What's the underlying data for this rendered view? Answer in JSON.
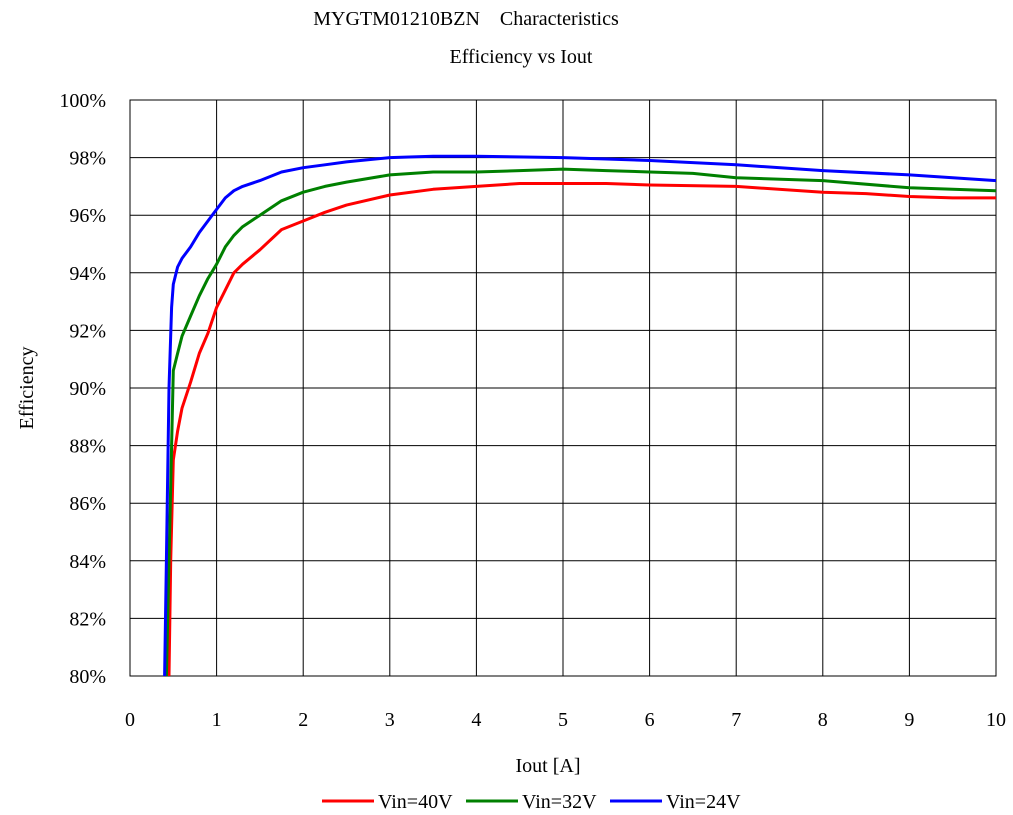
{
  "chart_data": {
    "type": "line",
    "title": "MYGTM01210BZN    Characteristics",
    "subtitle": "Efficiency vs Iout",
    "xlabel": "Iout [A]",
    "ylabel": "Efficiency",
    "xlim": [
      0,
      10
    ],
    "ylim": [
      80,
      100
    ],
    "x_ticks": [
      "0",
      "1",
      "2",
      "3",
      "4",
      "5",
      "6",
      "7",
      "8",
      "9",
      "10"
    ],
    "y_ticks": [
      "80%",
      "82%",
      "84%",
      "86%",
      "88%",
      "90%",
      "92%",
      "94%",
      "96%",
      "98%",
      "100%"
    ],
    "grid": true,
    "legend_position": "bottom",
    "series": [
      {
        "name": "Vin=40V",
        "color": "#ff0000",
        "points": [
          [
            0.45,
            80.0
          ],
          [
            0.47,
            84.0
          ],
          [
            0.5,
            87.5
          ],
          [
            0.55,
            88.5
          ],
          [
            0.6,
            89.3
          ],
          [
            0.7,
            90.2
          ],
          [
            0.8,
            91.2
          ],
          [
            0.9,
            91.9
          ],
          [
            1.0,
            92.8
          ],
          [
            1.1,
            93.4
          ],
          [
            1.2,
            94.0
          ],
          [
            1.3,
            94.3
          ],
          [
            1.5,
            94.8
          ],
          [
            1.75,
            95.5
          ],
          [
            2.0,
            95.8
          ],
          [
            2.25,
            96.1
          ],
          [
            2.5,
            96.35
          ],
          [
            3.0,
            96.7
          ],
          [
            3.5,
            96.9
          ],
          [
            4.0,
            97.0
          ],
          [
            4.5,
            97.1
          ],
          [
            5.0,
            97.1
          ],
          [
            5.5,
            97.1
          ],
          [
            6.0,
            97.05
          ],
          [
            7.0,
            97.0
          ],
          [
            8.0,
            96.8
          ],
          [
            8.5,
            96.75
          ],
          [
            9.0,
            96.65
          ],
          [
            9.5,
            96.6
          ],
          [
            10.0,
            96.6
          ]
        ]
      },
      {
        "name": "Vin=32V",
        "color": "#008000",
        "points": [
          [
            0.42,
            80.0
          ],
          [
            0.45,
            84.0
          ],
          [
            0.48,
            88.0
          ],
          [
            0.5,
            90.6
          ],
          [
            0.55,
            91.2
          ],
          [
            0.6,
            91.8
          ],
          [
            0.7,
            92.5
          ],
          [
            0.8,
            93.2
          ],
          [
            0.9,
            93.8
          ],
          [
            1.0,
            94.3
          ],
          [
            1.1,
            94.9
          ],
          [
            1.2,
            95.3
          ],
          [
            1.3,
            95.6
          ],
          [
            1.5,
            96.0
          ],
          [
            1.75,
            96.5
          ],
          [
            2.0,
            96.8
          ],
          [
            2.25,
            97.0
          ],
          [
            2.5,
            97.15
          ],
          [
            3.0,
            97.4
          ],
          [
            3.5,
            97.5
          ],
          [
            4.0,
            97.5
          ],
          [
            4.5,
            97.55
          ],
          [
            5.0,
            97.6
          ],
          [
            5.5,
            97.55
          ],
          [
            6.0,
            97.5
          ],
          [
            6.5,
            97.45
          ],
          [
            7.0,
            97.3
          ],
          [
            8.0,
            97.2
          ],
          [
            9.0,
            96.95
          ],
          [
            10.0,
            96.85
          ]
        ]
      },
      {
        "name": "Vin=24V",
        "color": "#0000ff",
        "points": [
          [
            0.4,
            80.0
          ],
          [
            0.42,
            84.0
          ],
          [
            0.45,
            90.0
          ],
          [
            0.48,
            92.8
          ],
          [
            0.5,
            93.6
          ],
          [
            0.55,
            94.2
          ],
          [
            0.6,
            94.5
          ],
          [
            0.7,
            94.9
          ],
          [
            0.8,
            95.4
          ],
          [
            0.9,
            95.8
          ],
          [
            1.0,
            96.2
          ],
          [
            1.1,
            96.6
          ],
          [
            1.2,
            96.85
          ],
          [
            1.3,
            97.0
          ],
          [
            1.5,
            97.2
          ],
          [
            1.75,
            97.5
          ],
          [
            2.0,
            97.65
          ],
          [
            2.25,
            97.75
          ],
          [
            2.5,
            97.85
          ],
          [
            3.0,
            98.0
          ],
          [
            3.5,
            98.05
          ],
          [
            4.0,
            98.05
          ],
          [
            5.0,
            98.0
          ],
          [
            5.5,
            97.95
          ],
          [
            6.0,
            97.9
          ],
          [
            7.0,
            97.75
          ],
          [
            8.0,
            97.55
          ],
          [
            9.0,
            97.4
          ],
          [
            10.0,
            97.2
          ]
        ]
      }
    ]
  }
}
